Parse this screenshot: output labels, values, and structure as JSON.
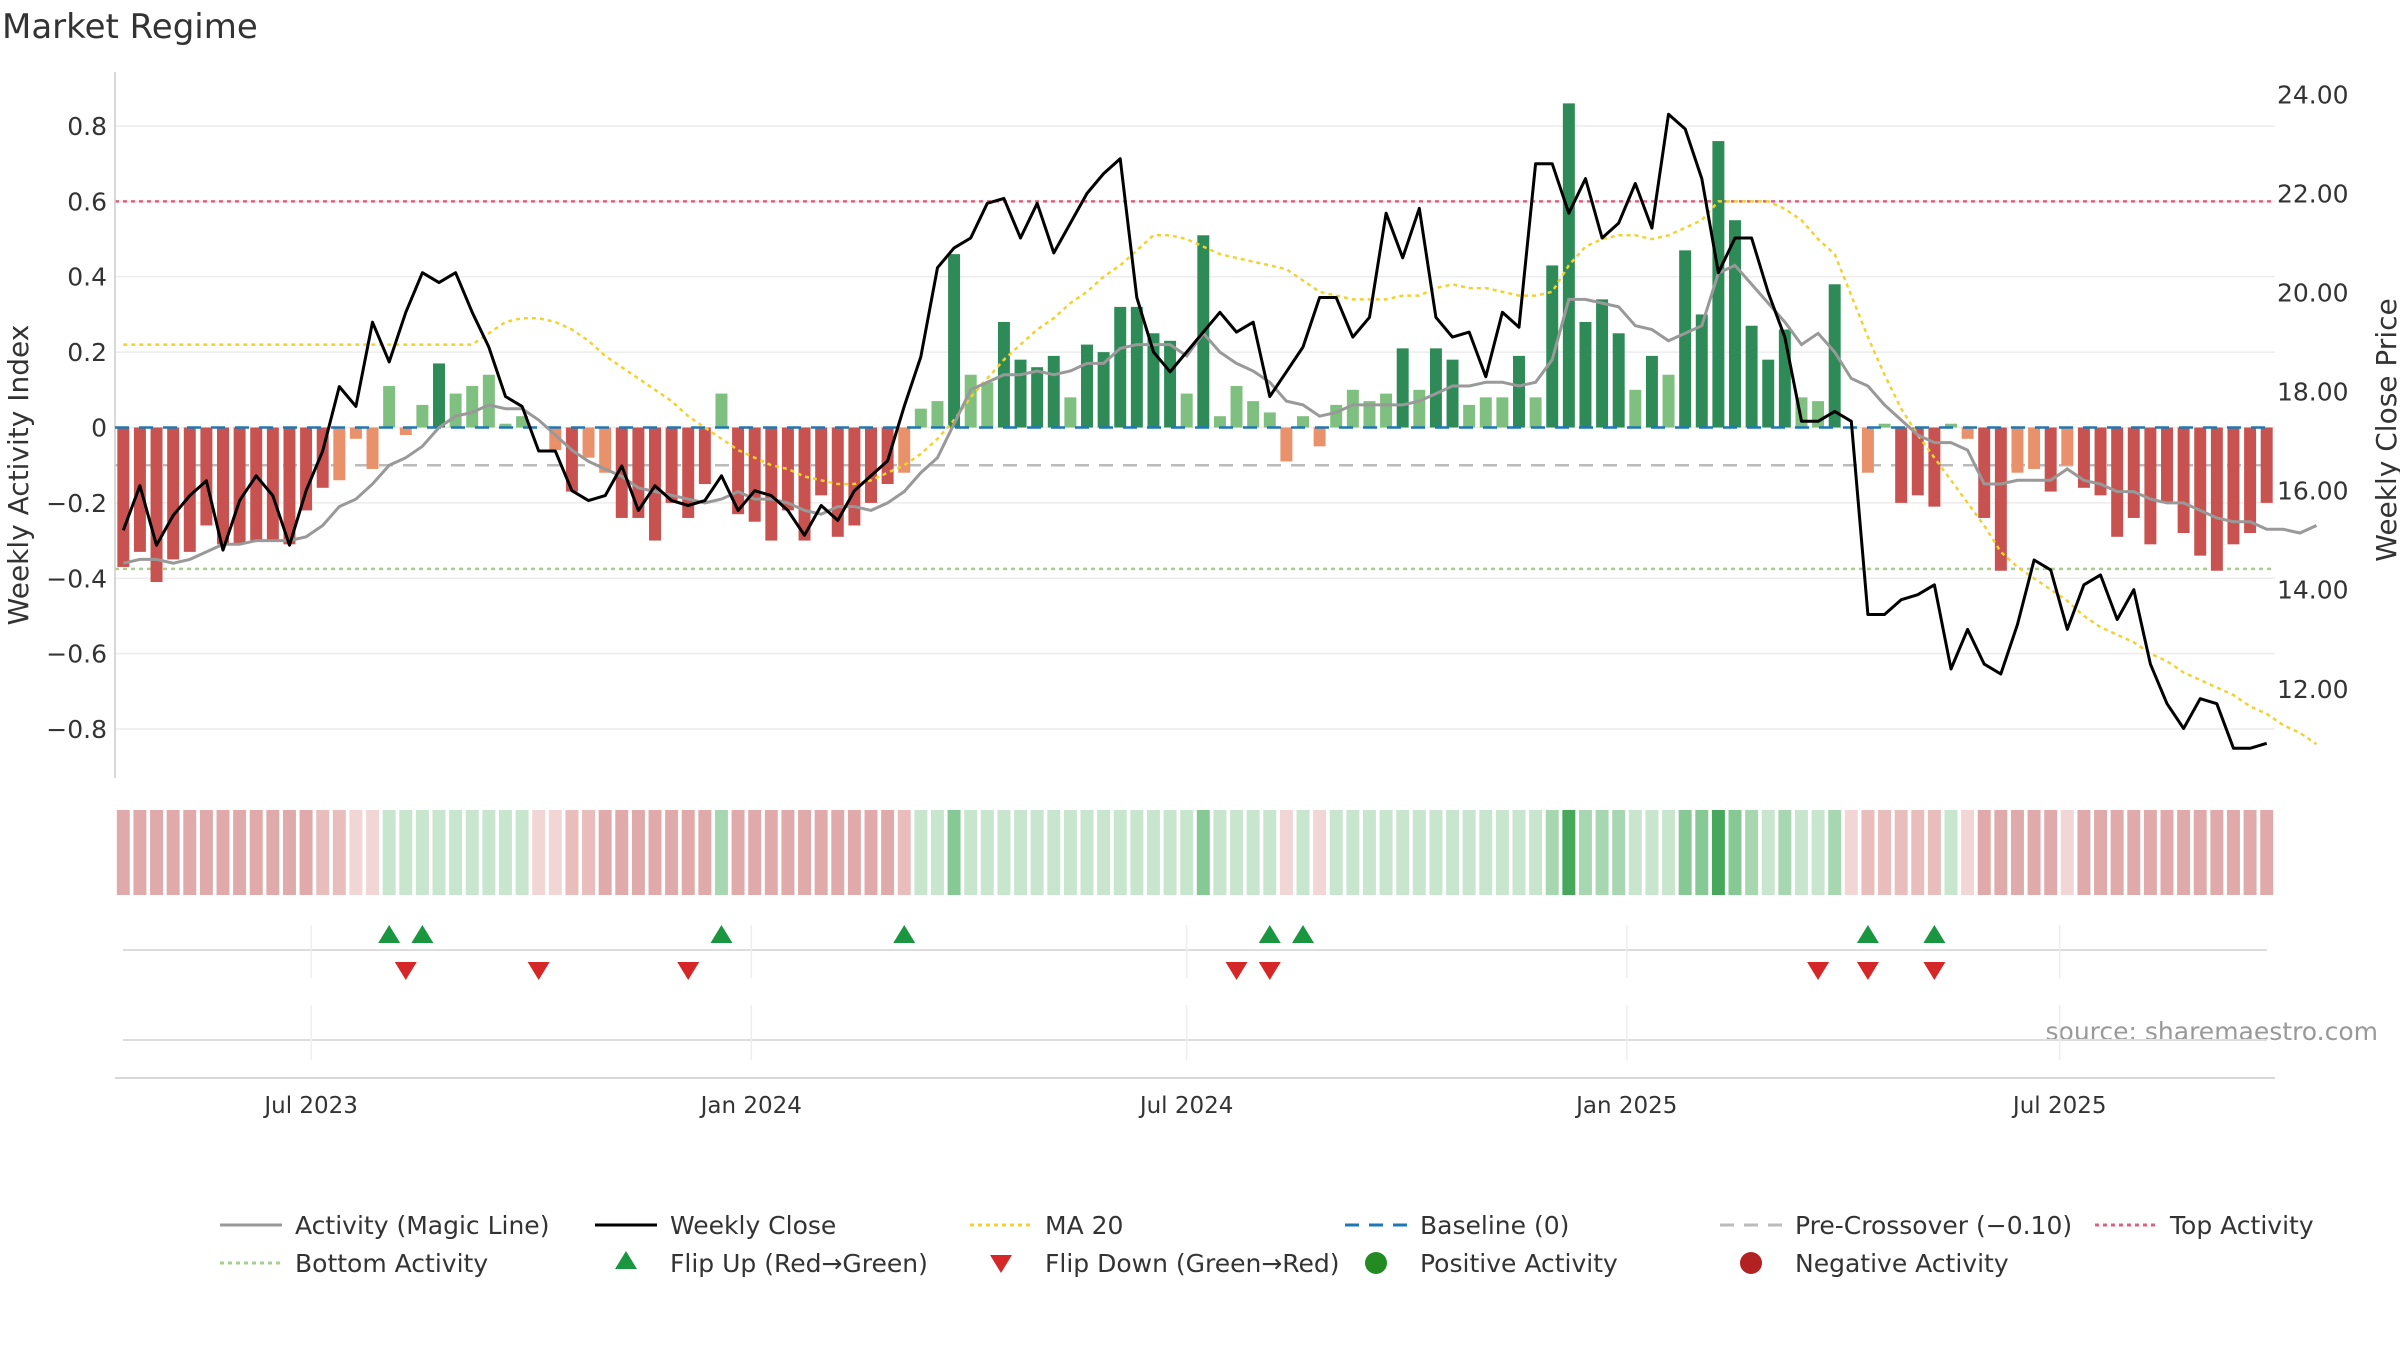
{
  "colors": {
    "strong_green": "#2e8b57",
    "light_green": "#7fbf7f",
    "strong_red": "#c8524f",
    "light_red": "#e8916b",
    "close": "#000000",
    "magic": "#999999",
    "ma20": "#f2d230",
    "baseline": "#1f77b4",
    "pre_cross": "#bbbbbb",
    "top": "#e0607e",
    "bottom": "#a8d08d",
    "flip_up": "#1a9641",
    "flip_down": "#d62728",
    "positive": "#228b22",
    "negative": "#b22222",
    "axis_text": "#333333"
  },
  "chart_data": {
    "type": "bar",
    "title": "Market Regime",
    "source": "source: sharemaestro.com",
    "ylabel_left": "Weekly Activity Index",
    "ylabel_right": "Weekly Close Price",
    "left_ticks": [
      "0.8",
      "0.6",
      "0.4",
      "0.2",
      "0",
      "−0.2",
      "−0.4",
      "−0.6",
      "−0.8"
    ],
    "left_tick_values": [
      0.8,
      0.6,
      0.4,
      0.2,
      0,
      -0.2,
      -0.4,
      -0.6,
      -0.8
    ],
    "ylim_left": [
      -0.93,
      0.93
    ],
    "right_ticks": [
      "24.00",
      "22.00",
      "20.00",
      "18.00",
      "16.00",
      "14.00",
      "12.00"
    ],
    "right_tick_values": [
      24,
      22,
      20,
      18,
      16,
      14,
      12
    ],
    "ylim_right": [
      10.2,
      24.35
    ],
    "x_start": "2023-04-10",
    "x_end": "2025-09-29",
    "x_ticks": [
      {
        "label": "Jul 2023",
        "date": "2023-07-01"
      },
      {
        "label": "Jan 2024",
        "date": "2024-01-01"
      },
      {
        "label": "Jul 2024",
        "date": "2024-07-01"
      },
      {
        "label": "Jan 2025",
        "date": "2025-01-01"
      },
      {
        "label": "Jul 2025",
        "date": "2025-07-01"
      }
    ],
    "reference_lines": {
      "top": 0.6,
      "bottom": -0.375,
      "baseline": 0,
      "pre_crossover": -0.1
    },
    "activity": [
      -0.37,
      -0.33,
      -0.41,
      -0.35,
      -0.33,
      -0.26,
      -0.31,
      -0.31,
      -0.3,
      -0.3,
      -0.31,
      -0.22,
      -0.16,
      -0.14,
      -0.03,
      -0.11,
      0.11,
      -0.02,
      0.06,
      0.17,
      0.09,
      0.11,
      0.14,
      0.01,
      0.03,
      0,
      -0.06,
      -0.17,
      -0.08,
      -0.12,
      -0.24,
      -0.24,
      -0.3,
      -0.2,
      -0.24,
      -0.15,
      0.09,
      -0.23,
      -0.25,
      -0.3,
      -0.22,
      -0.3,
      -0.18,
      -0.29,
      -0.26,
      -0.2,
      -0.15,
      -0.12,
      0.05,
      0.07,
      0.46,
      0.14,
      0.12,
      0.28,
      0.18,
      0.16,
      0.19,
      0.08,
      0.22,
      0.2,
      0.32,
      0.32,
      0.25,
      0.23,
      0.09,
      0.51,
      0.03,
      0.11,
      0.07,
      0.04,
      -0.09,
      0.03,
      -0.05,
      0.06,
      0.1,
      0.07,
      0.09,
      0.21,
      0.1,
      0.21,
      0.18,
      0.06,
      0.08,
      0.08,
      0.19,
      0.08,
      0.43,
      0.86,
      0.28,
      0.34,
      0.25,
      0.1,
      0.19,
      0.14,
      0.47,
      0.3,
      0.76,
      0.55,
      0.27,
      0.18,
      0.26,
      0.08,
      0.07,
      0.38,
      0,
      -0.12,
      0.01,
      -0.2,
      -0.18,
      -0.21,
      0.01,
      -0.03,
      -0.24,
      -0.38,
      -0.12,
      -0.11,
      -0.17,
      -0.1,
      -0.16,
      -0.18,
      -0.29,
      -0.24,
      -0.31,
      -0.2,
      -0.28,
      -0.34,
      -0.38,
      -0.31,
      -0.28,
      -0.2
    ],
    "weekly_close": [
      15.2,
      16.1,
      14.9,
      15.5,
      15.9,
      16.2,
      14.8,
      15.8,
      16.3,
      15.9,
      14.9,
      16.0,
      16.8,
      18.1,
      17.7,
      19.4,
      18.6,
      19.6,
      20.4,
      20.2,
      20.4,
      19.6,
      18.9,
      17.9,
      17.7,
      16.8,
      16.8,
      16.0,
      15.8,
      15.9,
      16.5,
      15.6,
      16.1,
      15.8,
      15.7,
      15.8,
      16.3,
      15.6,
      16.0,
      15.9,
      15.6,
      15.1,
      15.7,
      15.4,
      16.0,
      16.3,
      16.6,
      17.7,
      18.7,
      20.5,
      20.9,
      21.1,
      21.8,
      21.9,
      21.1,
      21.8,
      20.8,
      21.4,
      22.0,
      22.4,
      22.7,
      19.9,
      18.8,
      18.4,
      18.8,
      19.2,
      19.6,
      19.2,
      19.4,
      17.9,
      18.4,
      18.9,
      19.9,
      19.9,
      19.1,
      19.5,
      21.6,
      20.7,
      21.7,
      19.5,
      19.1,
      19.2,
      18.3,
      19.6,
      19.3,
      22.6,
      22.6,
      21.6,
      22.3,
      21.1,
      21.4,
      22.2,
      21.3,
      23.6,
      23.3,
      22.3,
      20.4,
      21.1,
      21.1,
      20.0,
      19.1,
      17.4,
      17.4,
      17.6,
      17.4,
      13.5,
      13.5,
      13.8,
      13.9,
      14.1,
      12.4,
      13.2,
      12.5,
      12.3,
      13.3,
      14.6,
      14.4,
      13.2,
      14.1,
      14.3,
      13.4,
      14.0,
      12.5,
      11.7,
      11.2,
      11.8,
      11.7,
      10.8,
      10.8,
      10.9
    ],
    "magic_line": [
      -0.36,
      -0.35,
      -0.35,
      -0.36,
      -0.35,
      -0.33,
      -0.31,
      -0.31,
      -0.3,
      -0.3,
      -0.3,
      -0.29,
      -0.26,
      -0.21,
      -0.19,
      -0.15,
      -0.1,
      -0.08,
      -0.05,
      0.0,
      0.03,
      0.04,
      0.06,
      0.05,
      0.05,
      0.02,
      -0.02,
      -0.06,
      -0.09,
      -0.11,
      -0.13,
      -0.16,
      -0.17,
      -0.18,
      -0.19,
      -0.2,
      -0.19,
      -0.17,
      -0.19,
      -0.19,
      -0.2,
      -0.22,
      -0.23,
      -0.21,
      -0.21,
      -0.22,
      -0.2,
      -0.17,
      -0.12,
      -0.08,
      0.01,
      0.1,
      0.12,
      0.14,
      0.14,
      0.15,
      0.14,
      0.15,
      0.17,
      0.17,
      0.21,
      0.22,
      0.22,
      0.22,
      0.19,
      0.25,
      0.2,
      0.17,
      0.15,
      0.12,
      0.07,
      0.06,
      0.03,
      0.04,
      0.06,
      0.06,
      0.06,
      0.06,
      0.07,
      0.09,
      0.11,
      0.11,
      0.12,
      0.12,
      0.11,
      0.12,
      0.18,
      0.34,
      0.34,
      0.33,
      0.32,
      0.27,
      0.26,
      0.23,
      0.25,
      0.27,
      0.41,
      0.43,
      0.38,
      0.33,
      0.28,
      0.22,
      0.25,
      0.2,
      0.13,
      0.11,
      0.06,
      0.02,
      -0.02,
      -0.04,
      -0.04,
      -0.06,
      -0.15,
      -0.15,
      -0.14,
      -0.14,
      -0.14,
      -0.11,
      -0.14,
      -0.15,
      -0.17,
      -0.17,
      -0.19,
      -0.2,
      -0.2,
      -0.22,
      -0.24,
      -0.25,
      -0.25,
      -0.27,
      -0.27,
      -0.28,
      -0.26
    ],
    "ma20": [
      0.22,
      0.22,
      0.22,
      0.22,
      0.22,
      0.22,
      0.22,
      0.22,
      0.22,
      0.22,
      0.22,
      0.22,
      0.22,
      0.22,
      0.22,
      0.22,
      0.22,
      0.22,
      0.22,
      0.22,
      0.22,
      0.22,
      0.25,
      0.28,
      0.29,
      0.29,
      0.28,
      0.26,
      0.23,
      0.19,
      0.16,
      0.13,
      0.1,
      0.07,
      0.03,
      0.0,
      -0.03,
      -0.06,
      -0.08,
      -0.1,
      -0.11,
      -0.13,
      -0.14,
      -0.15,
      -0.15,
      -0.14,
      -0.12,
      -0.1,
      -0.07,
      -0.03,
      0.02,
      0.08,
      0.13,
      0.18,
      0.22,
      0.26,
      0.29,
      0.33,
      0.36,
      0.4,
      0.43,
      0.47,
      0.51,
      0.51,
      0.5,
      0.48,
      0.46,
      0.45,
      0.44,
      0.43,
      0.42,
      0.39,
      0.36,
      0.35,
      0.34,
      0.34,
      0.34,
      0.35,
      0.35,
      0.37,
      0.38,
      0.37,
      0.37,
      0.36,
      0.35,
      0.35,
      0.36,
      0.43,
      0.48,
      0.5,
      0.51,
      0.51,
      0.5,
      0.51,
      0.53,
      0.55,
      0.6,
      0.6,
      0.6,
      0.6,
      0.58,
      0.55,
      0.5,
      0.46,
      0.35,
      0.24,
      0.14,
      0.05,
      -0.02,
      -0.08,
      -0.14,
      -0.2,
      -0.26,
      -0.33,
      -0.37,
      -0.4,
      -0.43,
      -0.46,
      -0.5,
      -0.53,
      -0.55,
      -0.57,
      -0.6,
      -0.62,
      -0.65,
      -0.67,
      -0.69,
      -0.71,
      -0.74,
      -0.76,
      -0.79,
      -0.81,
      -0.84
    ],
    "regime_strip": [
      -3,
      -3,
      -3,
      -3,
      -3,
      -3,
      -3,
      -3,
      -3,
      -3,
      -3,
      -3,
      -2,
      -2,
      -1,
      -1,
      1,
      1,
      1,
      1,
      1,
      1,
      1,
      1,
      1,
      -1,
      -1,
      -2,
      -2,
      -3,
      -3,
      -3,
      -3,
      -3,
      -3,
      -3,
      2,
      -3,
      -3,
      -3,
      -3,
      -3,
      -3,
      -3,
      -3,
      -3,
      -3,
      -2,
      1,
      1,
      3,
      1,
      1,
      1,
      1,
      1,
      1,
      1,
      1,
      1,
      1,
      1,
      1,
      1,
      1,
      3,
      1,
      1,
      1,
      1,
      -1,
      1,
      -1,
      1,
      1,
      1,
      1,
      1,
      1,
      1,
      1,
      1,
      1,
      1,
      1,
      1,
      2,
      4,
      2,
      2,
      2,
      1,
      1,
      1,
      3,
      3,
      4,
      3,
      2,
      1,
      2,
      1,
      1,
      2,
      -1,
      -2,
      -2,
      -2,
      -2,
      -2,
      1,
      -1,
      -3,
      -3,
      -3,
      -3,
      -3,
      -1,
      -3,
      -3,
      -3,
      -3,
      -3,
      -3,
      -3,
      -3,
      -3,
      -3,
      -3,
      -3
    ],
    "flips_up": [
      16,
      18,
      36,
      47,
      69,
      71,
      105,
      109
    ],
    "flips_down": [
      17,
      25,
      34,
      67,
      69,
      102,
      105,
      109
    ],
    "legend": [
      {
        "key": "magic",
        "label": "Activity (Magic Line)"
      },
      {
        "key": "close",
        "label": "Weekly Close"
      },
      {
        "key": "ma20",
        "label": "MA 20"
      },
      {
        "key": "baseline",
        "label": "Baseline (0)"
      },
      {
        "key": "pre_cross",
        "label": "Pre-Crossover (−0.10)"
      },
      {
        "key": "top",
        "label": "Top Activity"
      },
      {
        "key": "bottom",
        "label": "Bottom Activity"
      },
      {
        "key": "flip_up",
        "label": "Flip Up (Red→Green)"
      },
      {
        "key": "flip_down",
        "label": "Flip Down (Green→Red)"
      },
      {
        "key": "positive",
        "label": "Positive Activity"
      },
      {
        "key": "negative",
        "label": "Negative Activity"
      }
    ]
  }
}
